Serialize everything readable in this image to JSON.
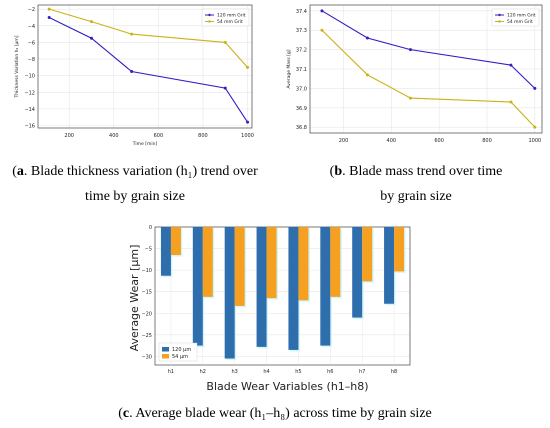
{
  "captions": {
    "a_label": "a",
    "a_line1_rest": ". Blade thickness variation (h₁) trend over",
    "a_line2": "time by grain size",
    "b_label": "b",
    "b_line1_rest": ". Blade mass trend over time",
    "b_line2": "by grain size",
    "c_label": "c",
    "c_rest": ". Average blade wear (h₁–h₈) across time by grain size"
  },
  "colors": {
    "series_120": "#2f1fc4",
    "series_54": "#c9b21a",
    "bar_120": "#2f6ead",
    "bar_54": "#f5a020",
    "grid": "#e6e6e6"
  },
  "chart_data": [
    {
      "id": "a",
      "type": "line",
      "xlabel": "Time [min]",
      "ylabel": "Thickness Variation h₁ [µm]",
      "xlim": [
        60,
        1020
      ],
      "ylim": [
        -16.3,
        -1.5
      ],
      "xticks": [
        200,
        400,
        600,
        800,
        1000
      ],
      "yticks": [
        -2,
        -4,
        -6,
        -8,
        -10,
        -12,
        -14,
        -16
      ],
      "ytick_labels": [
        "−2",
        "−4",
        "−6",
        "−8",
        "−10",
        "−12",
        "−14",
        "−16"
      ],
      "legend": "top-right",
      "grid": true,
      "series": [
        {
          "name": "120 mm Grit",
          "x": [
            110,
            300,
            480,
            900,
            1000
          ],
          "y": [
            -3.0,
            -5.5,
            -9.5,
            -11.5,
            -15.6
          ]
        },
        {
          "name": "54 mm Grit",
          "x": [
            110,
            300,
            480,
            900,
            1000
          ],
          "y": [
            -2.0,
            -3.5,
            -5.0,
            -6.0,
            -9.0
          ]
        }
      ]
    },
    {
      "id": "b",
      "type": "line",
      "xlabel": "",
      "ylabel": "Average Mass [g]",
      "xlim": [
        60,
        1030
      ],
      "ylim": [
        36.77,
        37.43
      ],
      "xticks": [
        200,
        400,
        600,
        800,
        1000
      ],
      "yticks": [
        36.8,
        36.9,
        37.0,
        37.1,
        37.2,
        37.3,
        37.4
      ],
      "ytick_labels": [
        "36.8",
        "36.9",
        "37.0",
        "37.1",
        "37.2",
        "37.3",
        "37.4"
      ],
      "legend": "top-right",
      "grid": true,
      "series": [
        {
          "name": "120 mm Grit",
          "x": [
            110,
            300,
            480,
            900,
            1000
          ],
          "y": [
            37.4,
            37.26,
            37.2,
            37.12,
            37.0
          ]
        },
        {
          "name": "54 mm Grit",
          "x": [
            110,
            300,
            480,
            900,
            1000
          ],
          "y": [
            37.3,
            37.07,
            36.95,
            36.93,
            36.8
          ]
        }
      ]
    },
    {
      "id": "c",
      "type": "bar",
      "xlabel": "Blade Wear Variables (h1–h8)",
      "ylabel": "Average Wear [µm]",
      "categories": [
        "h1",
        "h2",
        "h3",
        "h4",
        "h5",
        "h6",
        "h7",
        "h8"
      ],
      "ylim": [
        -32,
        0
      ],
      "yticks": [
        0,
        -5,
        -10,
        -15,
        -20,
        -25,
        -30
      ],
      "ytick_labels": [
        "0",
        "−5",
        "−10",
        "−15",
        "−20",
        "−25",
        "−30"
      ],
      "legend": "bottom-left",
      "grid": true,
      "series": [
        {
          "name": "120 µm",
          "values": [
            -11.3,
            -27.5,
            -30.5,
            -27.8,
            -28.5,
            -27.5,
            -21.0,
            -17.8
          ]
        },
        {
          "name": "54 µm",
          "values": [
            -6.5,
            -16.2,
            -18.3,
            -16.5,
            -17.0,
            -16.2,
            -12.6,
            -10.3
          ]
        }
      ]
    }
  ]
}
